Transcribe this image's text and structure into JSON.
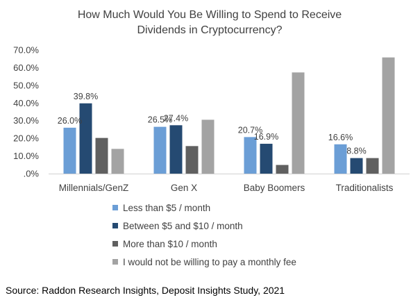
{
  "chart_data": {
    "type": "bar",
    "title_lines": [
      "How Much Would You Be Willing to Spend to Receive",
      "Dividends in Cryptocurrency?"
    ],
    "categories": [
      "Millennials/GenZ",
      "Gen X",
      "Baby Boomers",
      "Traditionalists"
    ],
    "ylim": [
      0,
      70
    ],
    "ytick_values": [
      0,
      10,
      20,
      30,
      40,
      50,
      60,
      70
    ],
    "ytick_labels": [
      ".0%",
      "10.0%",
      "20.0%",
      "30.0%",
      "40.0%",
      "50.0%",
      "60.0%",
      "70.0%"
    ],
    "grid": false,
    "legend_position": "bottom",
    "series": [
      {
        "name": "Less than $5 / month",
        "color": "#6b9ed6",
        "values": [
          26.0,
          26.5,
          20.7,
          16.6
        ],
        "labels": [
          "26.0%",
          "26.5%",
          "20.7%",
          "16.6%"
        ]
      },
      {
        "name": "Between $5 and $10 / month",
        "color": "#254a72",
        "values": [
          39.8,
          27.4,
          16.9,
          8.8
        ],
        "labels": [
          "39.8%",
          "27.4%",
          "16.9%",
          "8.8%"
        ]
      },
      {
        "name": "More than $10 / month",
        "color": "#606060",
        "values": [
          20.2,
          15.6,
          4.9,
          8.8
        ],
        "labels": [
          "",
          "",
          "",
          ""
        ]
      },
      {
        "name": "I would not be willing to pay a monthly fee",
        "color": "#a3a3a3",
        "values": [
          14.0,
          30.5,
          57.3,
          65.8
        ],
        "labels": [
          "",
          "",
          "",
          ""
        ]
      }
    ],
    "source": "Source: Raddon Research Insights, Deposit Insights Study, 2021"
  }
}
